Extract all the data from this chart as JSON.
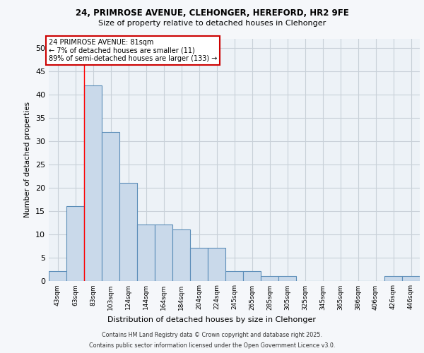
{
  "title_line1": "24, PRIMROSE AVENUE, CLEHONGER, HEREFORD, HR2 9FE",
  "title_line2": "Size of property relative to detached houses in Clehonger",
  "xlabel": "Distribution of detached houses by size in Clehonger",
  "ylabel": "Number of detached properties",
  "categories": [
    "43sqm",
    "63sqm",
    "83sqm",
    "103sqm",
    "124sqm",
    "144sqm",
    "164sqm",
    "184sqm",
    "204sqm",
    "224sqm",
    "245sqm",
    "265sqm",
    "285sqm",
    "305sqm",
    "325sqm",
    "345sqm",
    "365sqm",
    "386sqm",
    "406sqm",
    "426sqm",
    "446sqm"
  ],
  "values": [
    2,
    16,
    42,
    32,
    21,
    12,
    12,
    11,
    7,
    7,
    2,
    2,
    1,
    1,
    0,
    0,
    0,
    0,
    0,
    1,
    1
  ],
  "bar_color": "#c9d9ea",
  "bar_edge_color": "#5b8db8",
  "annotation_title": "24 PRIMROSE AVENUE: 81sqm",
  "annotation_line2": "← 7% of detached houses are smaller (11)",
  "annotation_line3": "89% of semi-detached houses are larger (133) →",
  "annotation_box_color": "#ffffff",
  "annotation_border_color": "#cc0000",
  "ylim": [
    0,
    52
  ],
  "yticks": [
    0,
    5,
    10,
    15,
    20,
    25,
    30,
    35,
    40,
    45,
    50
  ],
  "grid_color": "#c8d0d8",
  "bg_color": "#edf2f7",
  "footer_line1": "Contains HM Land Registry data © Crown copyright and database right 2025.",
  "footer_line2": "Contains public sector information licensed under the Open Government Licence v3.0.",
  "fig_bg": "#f5f7fa"
}
